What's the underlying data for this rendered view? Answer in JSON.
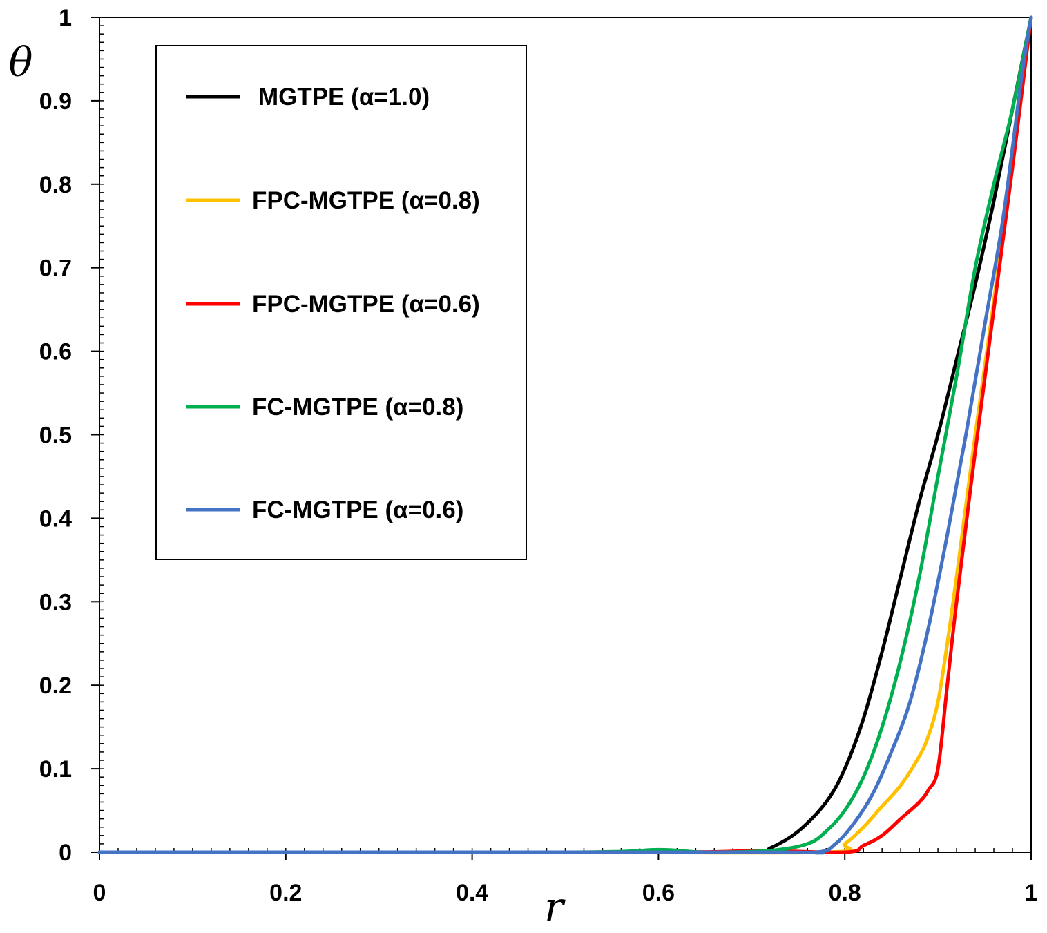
{
  "chart_data": {
    "type": "line",
    "title": "",
    "xlabel": "r",
    "ylabel": "θ",
    "xlim": [
      0,
      1
    ],
    "ylim": [
      0,
      1
    ],
    "x_ticks": [
      "0",
      "0.2",
      "0.4",
      "0.6",
      "0.8",
      "1"
    ],
    "y_ticks": [
      "0",
      "0.1",
      "0.2",
      "0.3",
      "0.4",
      "0.5",
      "0.6",
      "0.7",
      "0.8",
      "0.9",
      "1"
    ],
    "legend_position": "top-left",
    "series": [
      {
        "name": "MGTPE (α=1.0)",
        "color": "#000000",
        "x": [
          0,
          0.5,
          0.7,
          0.72,
          0.75,
          0.78,
          0.8,
          0.82,
          0.84,
          0.86,
          0.88,
          0.9,
          0.92,
          0.94,
          0.96,
          0.98,
          1.0
        ],
        "y": [
          0,
          0,
          0.0,
          0.005,
          0.025,
          0.06,
          0.1,
          0.16,
          0.24,
          0.33,
          0.42,
          0.5,
          0.59,
          0.68,
          0.78,
          0.89,
          1.0
        ]
      },
      {
        "name": "FPC-MGTPE (α=0.8)",
        "color": "#FFC000",
        "x": [
          0,
          0.5,
          0.78,
          0.8,
          0.82,
          0.84,
          0.86,
          0.88,
          0.89,
          0.9,
          0.91,
          0.92,
          0.94,
          0.96,
          0.98,
          1.0
        ],
        "y": [
          0,
          0,
          0.0,
          0.01,
          0.03,
          0.055,
          0.08,
          0.115,
          0.14,
          0.18,
          0.25,
          0.33,
          0.5,
          0.66,
          0.83,
          1.0
        ]
      },
      {
        "name": "FPC-MGTPE (α=0.6)",
        "color": "#FF0000",
        "x": [
          0,
          0.6,
          0.7,
          0.8,
          0.82,
          0.84,
          0.86,
          0.88,
          0.89,
          0.9,
          0.91,
          0.92,
          0.94,
          0.96,
          0.98,
          1.0
        ],
        "y": [
          0,
          0,
          0.002,
          0.0,
          0.008,
          0.02,
          0.04,
          0.06,
          0.075,
          0.1,
          0.2,
          0.3,
          0.48,
          0.65,
          0.82,
          1.0
        ]
      },
      {
        "name": "FC-MGTPE  (α=0.8)",
        "color": "#00B050",
        "x": [
          0,
          0.5,
          0.6,
          0.65,
          0.72,
          0.76,
          0.78,
          0.8,
          0.82,
          0.84,
          0.86,
          0.88,
          0.9,
          0.92,
          0.94,
          0.96,
          0.98,
          1.0
        ],
        "y": [
          0,
          0,
          0.003,
          0.0,
          0.002,
          0.01,
          0.025,
          0.05,
          0.09,
          0.15,
          0.23,
          0.33,
          0.45,
          0.57,
          0.7,
          0.8,
          0.89,
          1.0
        ]
      },
      {
        "name": "FC-MGTPE  (α=0.6)",
        "color": "#4472C4",
        "x": [
          0,
          0.7,
          0.77,
          0.79,
          0.81,
          0.83,
          0.85,
          0.87,
          0.89,
          0.91,
          0.93,
          0.95,
          0.97,
          0.99,
          1.0
        ],
        "y": [
          0,
          0,
          0.0,
          0.01,
          0.035,
          0.07,
          0.12,
          0.18,
          0.27,
          0.38,
          0.5,
          0.63,
          0.76,
          0.93,
          1.0
        ]
      }
    ]
  }
}
